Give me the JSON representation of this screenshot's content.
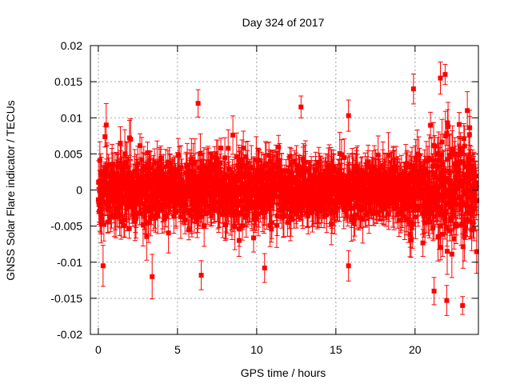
{
  "chart_data": {
    "type": "scatter",
    "title": "Day 324 of 2017",
    "xlabel": "GPS time / hours",
    "ylabel": "GNSS Solar Flare indicator / TECUs",
    "xlim": [
      -0.5,
      24
    ],
    "ylim": [
      -0.02,
      0.02
    ],
    "xticks": [
      0,
      5,
      10,
      15,
      20
    ],
    "xtick_labels": [
      "0",
      "5",
      "10",
      "15",
      "20"
    ],
    "yticks": [
      -0.02,
      -0.015,
      -0.01,
      -0.005,
      0,
      0.005,
      0.01,
      0.015,
      0.02
    ],
    "ytick_labels": [
      "-0.02",
      "-0.015",
      "-0.01",
      "-0.005",
      "0",
      "0.005",
      "0.01",
      "0.015",
      "0.02"
    ],
    "grid": true,
    "series": [
      {
        "name": "GNSS solar flare indicator",
        "color": "#ff0000",
        "marker": "square",
        "error_bars": true,
        "x_range": [
          0,
          23.9
        ],
        "typical_spread": [
          {
            "x": 0,
            "std": 0.0045
          },
          {
            "x": 5,
            "std": 0.0042
          },
          {
            "x": 10,
            "std": 0.004
          },
          {
            "x": 15,
            "std": 0.0032
          },
          {
            "x": 18.5,
            "std": 0.0035
          },
          {
            "x": 21,
            "std": 0.006
          },
          {
            "x": 23.9,
            "std": 0.0055
          }
        ],
        "notable_points": [
          {
            "x": 0.3,
            "y": -0.0105
          },
          {
            "x": 0.5,
            "y": 0.009
          },
          {
            "x": 3.4,
            "y": -0.012
          },
          {
            "x": 6.3,
            "y": 0.012
          },
          {
            "x": 6.5,
            "y": -0.0118
          },
          {
            "x": 10.5,
            "y": -0.0108
          },
          {
            "x": 12.8,
            "y": 0.0115
          },
          {
            "x": 15.8,
            "y": 0.0103
          },
          {
            "x": 15.8,
            "y": -0.0105
          },
          {
            "x": 19.9,
            "y": 0.014
          },
          {
            "x": 21.2,
            "y": -0.014
          },
          {
            "x": 21.6,
            "y": 0.0155
          },
          {
            "x": 21.9,
            "y": 0.016
          },
          {
            "x": 22.0,
            "y": -0.0153
          },
          {
            "x": 23.0,
            "y": -0.016
          },
          {
            "x": 23.3,
            "y": 0.011
          }
        ]
      }
    ]
  }
}
